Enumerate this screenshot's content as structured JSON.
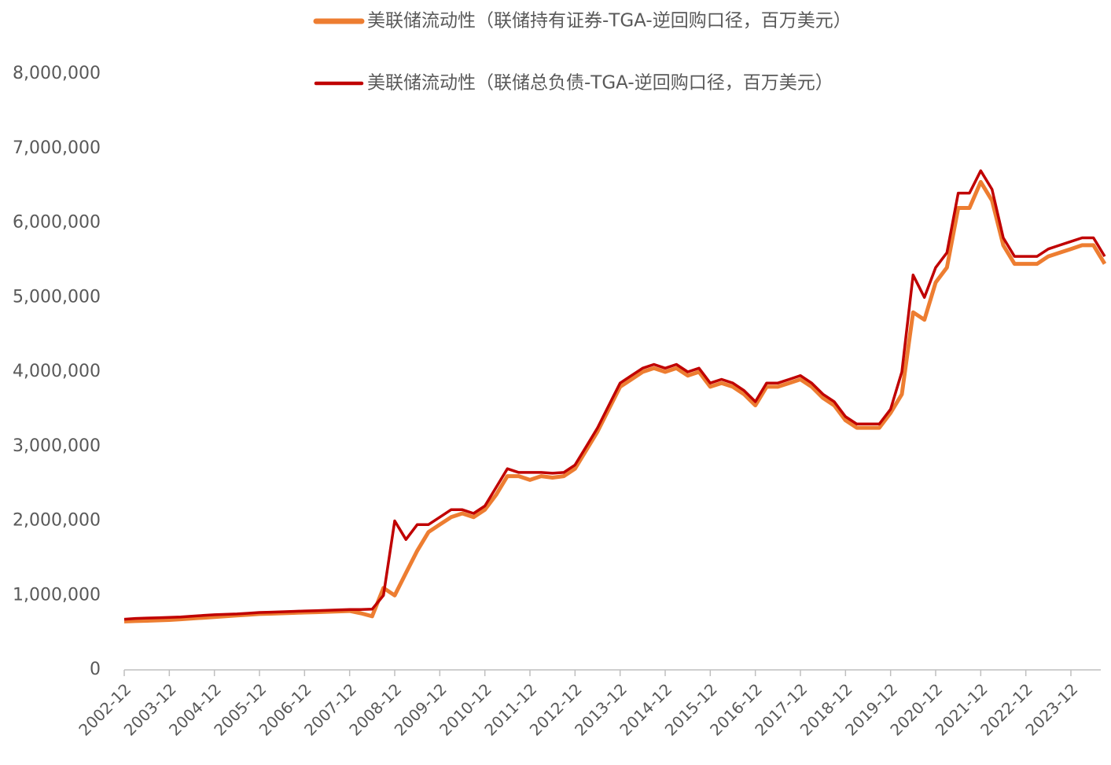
{
  "chart_data": {
    "type": "line",
    "categories": [
      "2002-12",
      null,
      null,
      null,
      "2003-12",
      null,
      null,
      null,
      "2004-12",
      null,
      null,
      null,
      "2005-12",
      null,
      null,
      null,
      "2006-12",
      null,
      null,
      null,
      "2007-12",
      null,
      null,
      null,
      "2008-12",
      null,
      null,
      null,
      "2009-12",
      null,
      null,
      null,
      "2010-12",
      null,
      null,
      null,
      "2011-12",
      null,
      null,
      null,
      "2012-12",
      null,
      null,
      null,
      "2013-12",
      null,
      null,
      null,
      "2014-12",
      null,
      null,
      null,
      "2015-12",
      null,
      null,
      null,
      "2016-12",
      null,
      null,
      null,
      "2017-12",
      null,
      null,
      null,
      "2018-12",
      null,
      null,
      null,
      "2019-12",
      null,
      null,
      null,
      "2020-12",
      null,
      null,
      null,
      "2021-12",
      null,
      null,
      null,
      "2022-12",
      null,
      null,
      null,
      "2023-12",
      null,
      null,
      null
    ],
    "series": [
      {
        "name": "美联储流动性（联储持有证券-TGA-逆回购口径，百万美元）",
        "color": "#ED7D31",
        "values": [
          650000,
          655000,
          660000,
          665000,
          670000,
          680000,
          690000,
          700000,
          710000,
          720000,
          730000,
          740000,
          750000,
          755000,
          760000,
          765000,
          770000,
          775000,
          780000,
          785000,
          790000,
          760000,
          720000,
          1100000,
          1000000,
          1300000,
          1600000,
          1850000,
          1950000,
          2050000,
          2100000,
          2050000,
          2150000,
          2350000,
          2600000,
          2600000,
          2550000,
          2600000,
          2580000,
          2600000,
          2700000,
          2950000,
          3200000,
          3500000,
          3800000,
          3900000,
          4000000,
          4050000,
          4000000,
          4050000,
          3950000,
          4000000,
          3800000,
          3850000,
          3800000,
          3700000,
          3550000,
          3800000,
          3800000,
          3850000,
          3900000,
          3800000,
          3650000,
          3550000,
          3350000,
          3250000,
          3250000,
          3250000,
          3450000,
          3700000,
          4800000,
          4700000,
          5200000,
          5400000,
          6200000,
          6200000,
          6550000,
          6300000,
          5700000,
          5450000,
          5450000,
          5450000,
          5550000,
          5600000,
          5650000,
          5700000,
          5700000,
          5450000
        ]
      },
      {
        "name": "美联储流动性（联储总负债-TGA-逆回购口径，百万美元）",
        "color": "#C00000",
        "values": [
          680000,
          690000,
          695000,
          700000,
          705000,
          710000,
          720000,
          730000,
          740000,
          745000,
          750000,
          760000,
          770000,
          775000,
          780000,
          785000,
          790000,
          795000,
          800000,
          805000,
          810000,
          810000,
          815000,
          1000000,
          2000000,
          1750000,
          1950000,
          1950000,
          2050000,
          2150000,
          2150000,
          2100000,
          2200000,
          2450000,
          2700000,
          2650000,
          2650000,
          2650000,
          2640000,
          2650000,
          2750000,
          3000000,
          3250000,
          3550000,
          3850000,
          3950000,
          4050000,
          4100000,
          4050000,
          4100000,
          4000000,
          4050000,
          3850000,
          3900000,
          3850000,
          3750000,
          3600000,
          3850000,
          3850000,
          3900000,
          3950000,
          3850000,
          3700000,
          3600000,
          3400000,
          3300000,
          3300000,
          3300000,
          3500000,
          4000000,
          5300000,
          5000000,
          5400000,
          5600000,
          6400000,
          6400000,
          6700000,
          6450000,
          5800000,
          5550000,
          5550000,
          5550000,
          5650000,
          5700000,
          5750000,
          5800000,
          5800000,
          5550000
        ]
      }
    ],
    "ylim": [
      0,
      8000000
    ],
    "yticks": [
      0,
      {
        "value": 1000000,
        "label": "1,000,000"
      },
      {
        "value": 2000000,
        "label": "2,000,000"
      },
      {
        "value": 3000000,
        "label": "3,000,000"
      },
      {
        "value": 4000000,
        "label": "4,000,000"
      },
      {
        "value": 5000000,
        "label": "5,000,000"
      },
      {
        "value": 6000000,
        "label": "6,000,000"
      },
      {
        "value": 7000000,
        "label": "7,000,000"
      },
      {
        "value": 8000000,
        "label": "8,000,000"
      }
    ],
    "grid": false
  }
}
